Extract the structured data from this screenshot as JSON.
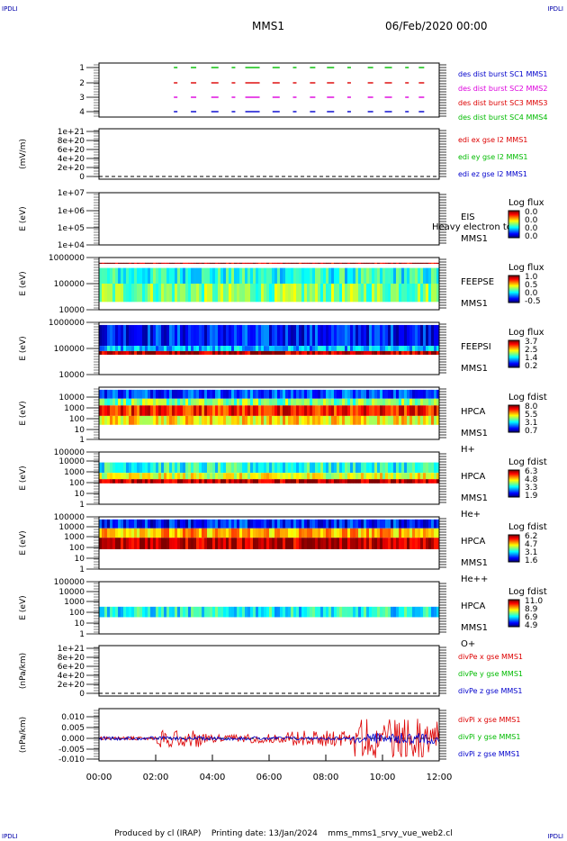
{
  "corners": {
    "tl": "IPDLI",
    "tr": "IPDLI",
    "bl": "IPDLI",
    "br": "IPDLI"
  },
  "header": {
    "title": "MMS1",
    "date": "06/Feb/2020 00:00"
  },
  "footer": {
    "produced_by": "Produced by cl (IRAP)",
    "printing_date": "Printing date: 13/Jan/2024",
    "filename": "mms_mms1_srvy_vue_web2.cl"
  },
  "colors": {
    "blue": "#0000cc",
    "red": "#dd0000",
    "green": "#00bb00",
    "magenta": "#dd00dd"
  },
  "chart_data": [
    {
      "type": "scatter",
      "id": "burst",
      "ylim": [
        0.5,
        4.3
      ],
      "yticks": [
        "1",
        "2",
        "3",
        "4"
      ],
      "legend": [
        {
          "text": "des dist burst SC1 MMS1",
          "color": "#0000cc"
        },
        {
          "text": "des dist burst SC2 MMS2",
          "color": "#dd00dd"
        },
        {
          "text": "des dist burst SC3 MMS3",
          "color": "#dd0000"
        },
        {
          "text": "des dist burst SC4 MMS4",
          "color": "#00bb00"
        }
      ]
    },
    {
      "type": "line",
      "id": "edi",
      "ylabel": "(mV/m)",
      "yticks": [
        "0",
        "2e+20",
        "4e+20",
        "6e+20",
        "8e+20",
        "1e+21"
      ],
      "legend": [
        {
          "text": "edi ex gse l2 MMS1",
          "color": "#dd0000"
        },
        {
          "text": "edi ey gse l2 MMS1",
          "color": "#00bb00"
        },
        {
          "text": "edi ez gse l2 MMS1",
          "color": "#0000cc"
        }
      ]
    },
    {
      "type": "heatmap",
      "id": "eis",
      "ylabel": "E (eV)",
      "yticks": [
        "1e+04",
        "1e+05",
        "1e+06",
        "1e+07"
      ],
      "labels": [
        "EIS",
        "MMS1"
      ],
      "overlay": "Heavy electron tof",
      "cbar_title": "Log flux",
      "cbar_ticks": [
        "0.0",
        "0.0",
        "0.0",
        "0.0"
      ]
    },
    {
      "type": "heatmap",
      "id": "feepse",
      "ylabel": "E (eV)",
      "yticks": [
        "10000",
        "100000",
        "1000000"
      ],
      "labels": [
        "FEEPSE",
        "MMS1"
      ],
      "cbar_title": "Log flux",
      "cbar_ticks": [
        "1.0",
        "0.5",
        "0.0",
        "-0.5"
      ]
    },
    {
      "type": "heatmap",
      "id": "feepsi",
      "ylabel": "E (eV)",
      "yticks": [
        "10000",
        "100000",
        "1000000"
      ],
      "labels": [
        "FEEPSI",
        "MMS1"
      ],
      "cbar_title": "Log flux",
      "cbar_ticks": [
        "3.7",
        "2.5",
        "1.4",
        "0.2"
      ]
    },
    {
      "type": "heatmap",
      "id": "hpca_h",
      "ylabel": "E (eV)",
      "yticks": [
        "1",
        "10",
        "100",
        "1000",
        "10000"
      ],
      "labels": [
        "HPCA",
        "MMS1",
        "H+"
      ],
      "cbar_title": "Log fdist",
      "cbar_ticks": [
        "8.0",
        "5.5",
        "3.1",
        "0.7"
      ]
    },
    {
      "type": "heatmap",
      "id": "hpca_he",
      "ylabel": "E (eV)",
      "yticks": [
        "1",
        "10",
        "100",
        "1000",
        "10000",
        "100000"
      ],
      "labels": [
        "HPCA",
        "MMS1",
        "He+"
      ],
      "cbar_title": "Log fdist",
      "cbar_ticks": [
        "6.3",
        "4.8",
        "3.3",
        "1.9"
      ]
    },
    {
      "type": "heatmap",
      "id": "hpca_hepp",
      "ylabel": "E (eV)",
      "yticks": [
        "1",
        "10",
        "100",
        "1000",
        "10000",
        "100000"
      ],
      "labels": [
        "HPCA",
        "MMS1",
        "He++"
      ],
      "cbar_title": "Log fdist",
      "cbar_ticks": [
        "6.2",
        "4.7",
        "3.1",
        "1.6"
      ]
    },
    {
      "type": "heatmap",
      "id": "hpca_o",
      "ylabel": "E (eV)",
      "yticks": [
        "1",
        "10",
        "100",
        "1000",
        "10000",
        "100000"
      ],
      "labels": [
        "HPCA",
        "MMS1",
        "O+"
      ],
      "cbar_title": "Log fdist",
      "cbar_ticks": [
        "11.0",
        "8.9",
        "6.9",
        "4.9"
      ]
    },
    {
      "type": "line",
      "id": "divpe",
      "ylabel": "(nPa/km)",
      "yticks": [
        "0",
        "2e+20",
        "4e+20",
        "6e+20",
        "8e+20",
        "1e+21"
      ],
      "legend": [
        {
          "text": "divPe x gse MMS1",
          "color": "#dd0000"
        },
        {
          "text": "divPe y gse MMS1",
          "color": "#00bb00"
        },
        {
          "text": "divPe z gse MMS1",
          "color": "#0000cc"
        }
      ]
    },
    {
      "type": "line",
      "id": "divpi",
      "ylabel": "(nPa/km)",
      "yticks": [
        "-0.010",
        "-0.005",
        "0.000",
        "0.005",
        "0.010"
      ],
      "legend": [
        {
          "text": "divPi x gse MMS1",
          "color": "#dd0000"
        },
        {
          "text": "divPi y gse MMS1",
          "color": "#00bb00"
        },
        {
          "text": "divPi z gse MMS1",
          "color": "#0000cc"
        }
      ]
    }
  ],
  "x_axis": {
    "ticks": [
      "00:00",
      "02:00",
      "04:00",
      "06:00",
      "08:00",
      "10:00",
      "12:00"
    ]
  }
}
